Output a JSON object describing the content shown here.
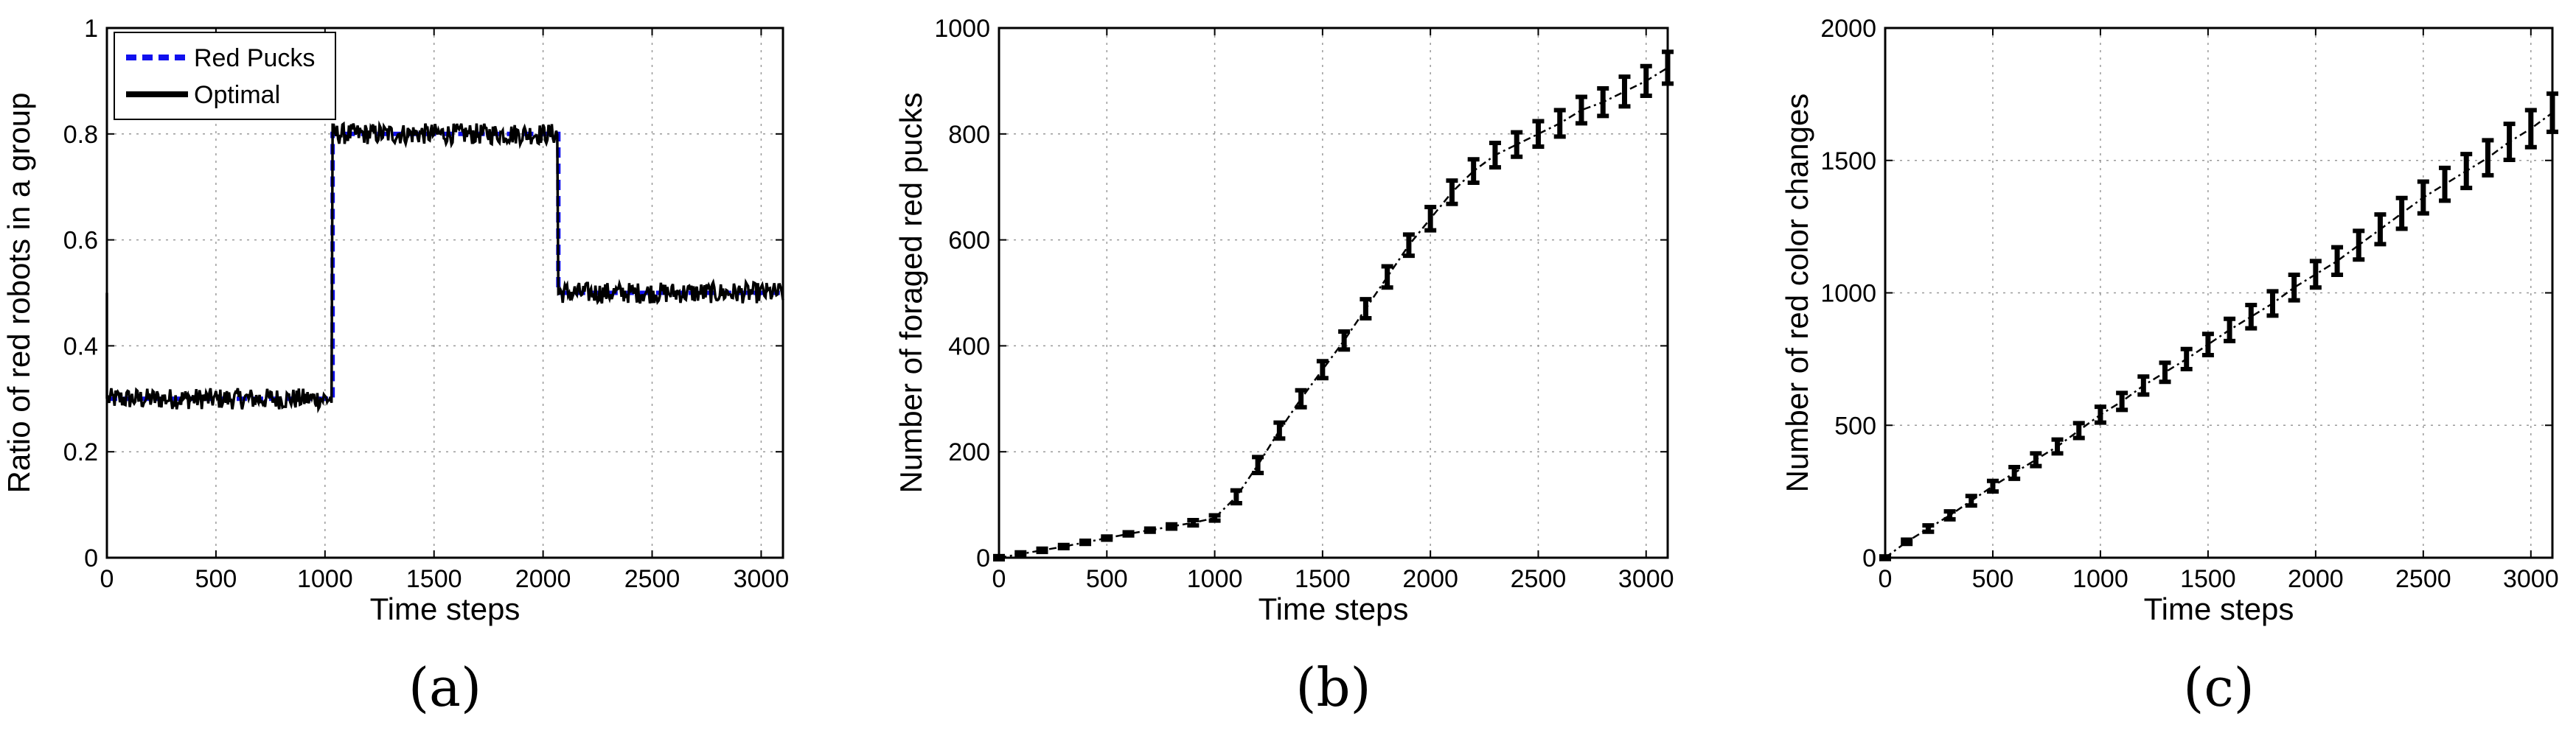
{
  "chart_data": [
    {
      "type": "line",
      "panel_label": "(a)",
      "xlabel": "Time steps",
      "ylabel": "Ratio of red robots in a group",
      "xlim": [
        0,
        3100
      ],
      "ylim": [
        0,
        1
      ],
      "xticks": [
        0,
        500,
        1000,
        1500,
        2000,
        2500,
        3000
      ],
      "yticks": [
        0,
        0.2,
        0.4,
        0.6,
        0.8,
        1
      ],
      "ytick_labels": [
        "0",
        "0.2",
        "0.4",
        "0.6",
        "0.8",
        "1"
      ],
      "grid": true,
      "legend": "top-left",
      "series": [
        {
          "name": "Red Pucks",
          "style": "dashed",
          "color": "#1010ee",
          "x": [
            0,
            1035,
            1035,
            2070,
            2070,
            3100
          ],
          "y": [
            0.3,
            0.3,
            0.8,
            0.8,
            0.5,
            0.5
          ]
        },
        {
          "name": "Optimal",
          "style": "solid-noisy",
          "color": "#000000",
          "x": [
            0,
            1035,
            1035,
            2070,
            2070,
            3100
          ],
          "y": [
            0.3,
            0.29,
            0.8,
            0.8,
            0.5,
            0.5
          ],
          "noise_amplitude": 0.02,
          "initial_spike": 0.5
        }
      ]
    },
    {
      "type": "line",
      "panel_label": "(b)",
      "xlabel": "Time steps",
      "ylabel": "Number of foraged red pucks",
      "xlim": [
        0,
        3100
      ],
      "ylim": [
        0,
        1000
      ],
      "xticks": [
        0,
        500,
        1000,
        1500,
        2000,
        2500,
        3000
      ],
      "yticks": [
        0,
        200,
        400,
        600,
        800,
        1000
      ],
      "ytick_labels": [
        "0",
        "200",
        "400",
        "600",
        "800",
        "1000"
      ],
      "grid": true,
      "series": [
        {
          "style": "dash-dot",
          "color": "#000000",
          "x": [
            0,
            100,
            200,
            300,
            400,
            500,
            600,
            700,
            800,
            900,
            1000,
            1100,
            1200,
            1300,
            1400,
            1500,
            1600,
            1700,
            1800,
            1900,
            2000,
            2100,
            2200,
            2300,
            2400,
            2500,
            2600,
            2700,
            2800,
            2900,
            3000,
            3100
          ],
          "y": [
            0,
            7,
            14,
            21,
            29,
            37,
            45,
            52,
            59,
            66,
            75,
            115,
            175,
            240,
            300,
            355,
            410,
            470,
            530,
            590,
            640,
            690,
            730,
            760,
            780,
            800,
            820,
            845,
            860,
            880,
            900,
            925
          ],
          "errors": [
            3,
            3,
            3,
            3,
            3,
            3,
            3,
            3,
            4,
            5,
            5,
            12,
            15,
            15,
            16,
            16,
            17,
            18,
            20,
            20,
            22,
            22,
            22,
            23,
            23,
            24,
            25,
            25,
            26,
            28,
            28,
            30
          ]
        }
      ]
    },
    {
      "type": "line",
      "panel_label": "(c)",
      "xlabel": "Time steps",
      "ylabel": "Number of red color changes",
      "xlim": [
        0,
        3100
      ],
      "ylim": [
        0,
        2000
      ],
      "xticks": [
        0,
        500,
        1000,
        1500,
        2000,
        2500,
        3000
      ],
      "yticks": [
        0,
        500,
        1000,
        1500,
        2000
      ],
      "ytick_labels": [
        "0",
        "500",
        "1000",
        "1500",
        "2000"
      ],
      "grid": true,
      "series": [
        {
          "style": "dash-dot",
          "color": "#000000",
          "x": [
            0,
            100,
            200,
            300,
            400,
            500,
            600,
            700,
            800,
            900,
            1000,
            1100,
            1200,
            1300,
            1400,
            1500,
            1600,
            1700,
            1800,
            1900,
            2000,
            2100,
            2200,
            2300,
            2400,
            2500,
            2600,
            2700,
            2800,
            2900,
            3000,
            3100
          ],
          "y": [
            0,
            60,
            110,
            160,
            215,
            270,
            320,
            370,
            420,
            480,
            540,
            590,
            650,
            700,
            750,
            805,
            860,
            910,
            960,
            1020,
            1070,
            1120,
            1180,
            1240,
            1300,
            1360,
            1410,
            1460,
            1510,
            1570,
            1620,
            1680
          ],
          "errors": [
            5,
            8,
            12,
            15,
            18,
            20,
            22,
            24,
            26,
            28,
            30,
            32,
            34,
            36,
            38,
            40,
            42,
            44,
            46,
            48,
            50,
            52,
            54,
            56,
            58,
            60,
            62,
            64,
            66,
            68,
            70,
            72
          ]
        }
      ]
    }
  ]
}
